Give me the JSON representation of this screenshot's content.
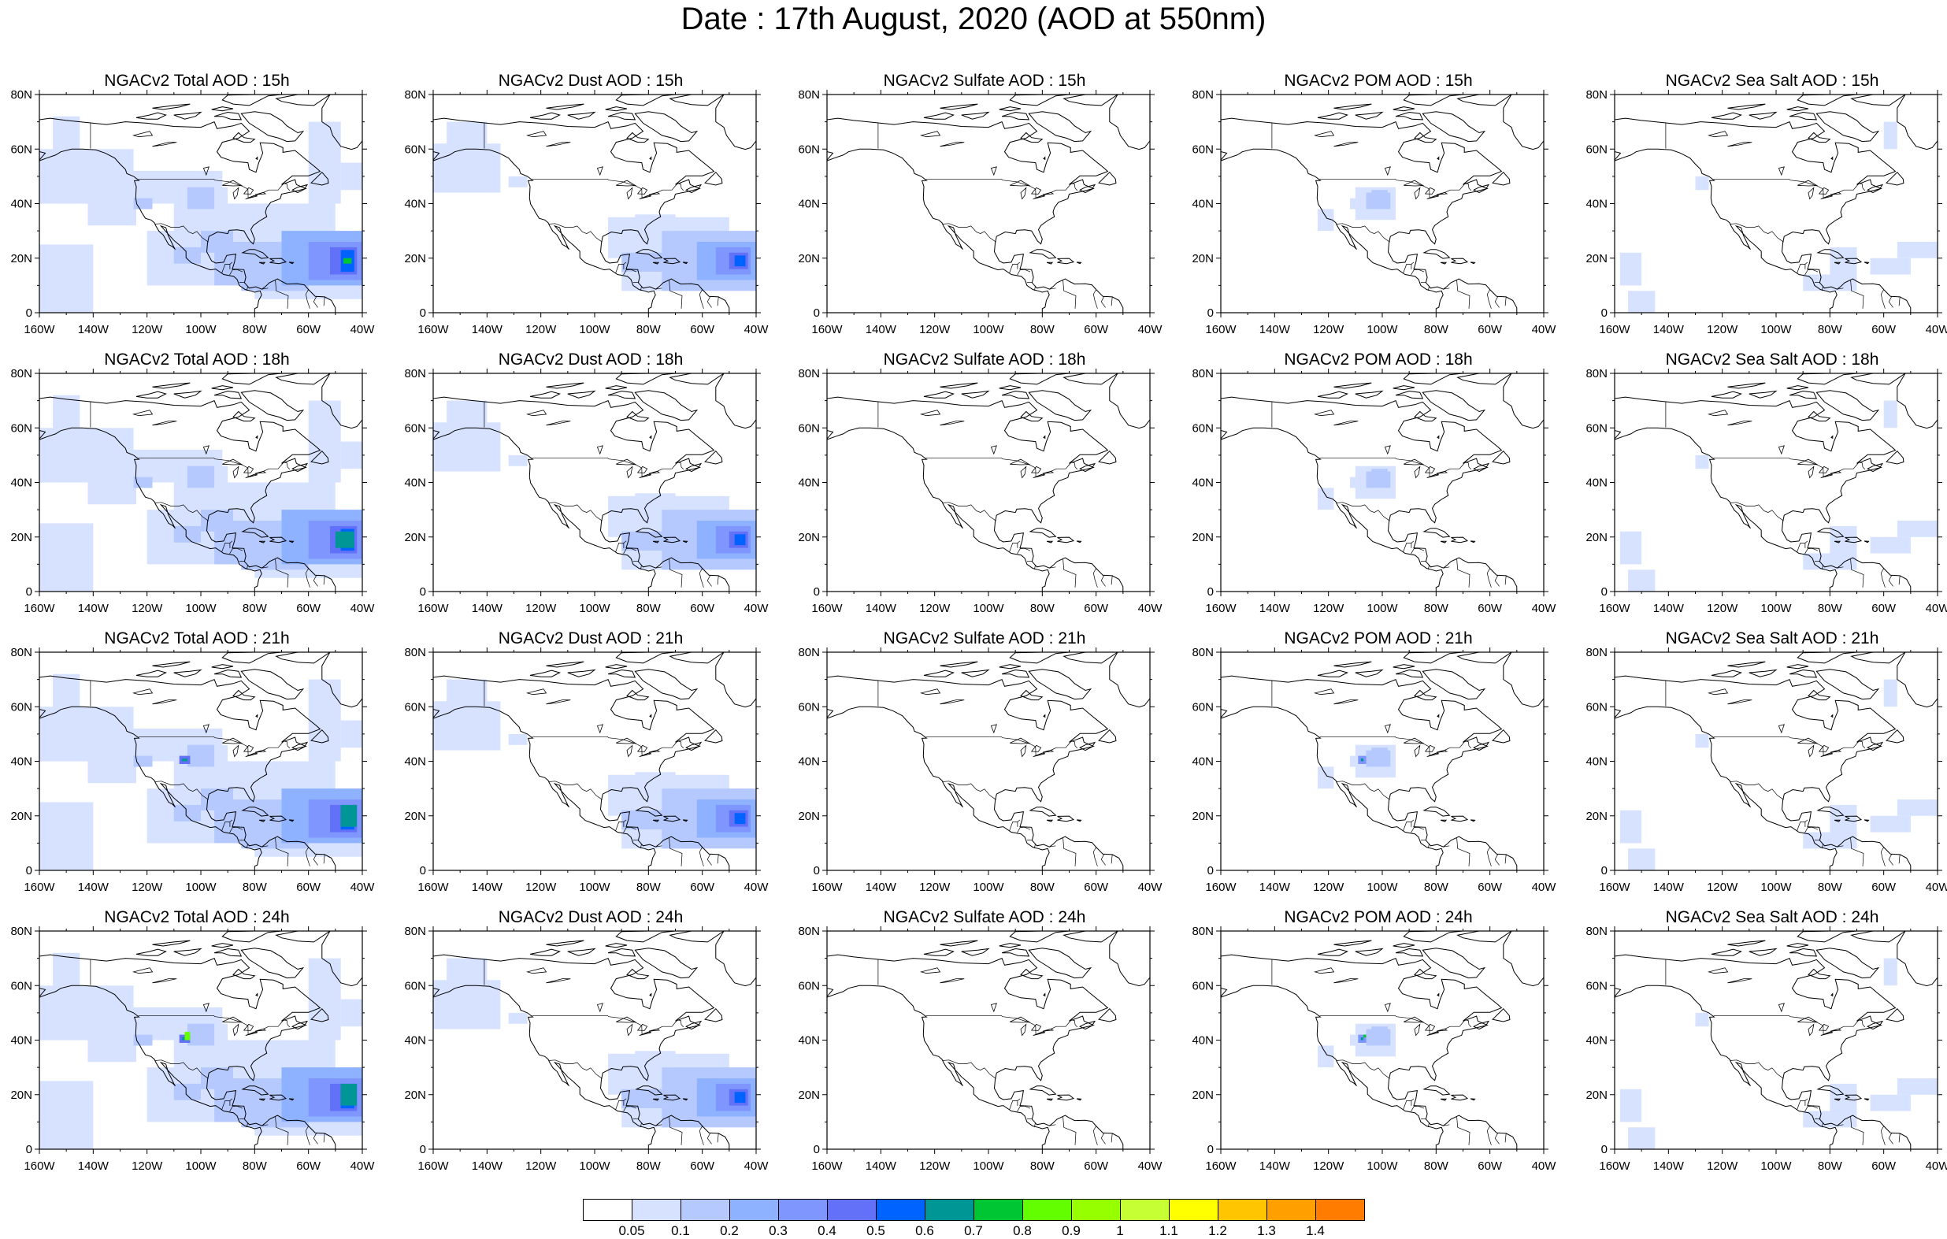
{
  "title": "Date : 17th August, 2020 (AOD at 550nm)",
  "lat_labels": [
    "0",
    "20N",
    "40N",
    "60N",
    "80N"
  ],
  "lon_labels": [
    "160W",
    "140W",
    "120W",
    "100W",
    "80W",
    "60W",
    "40W"
  ],
  "panels": [
    [
      {
        "title": "NGACv2 Total AOD : 15h",
        "field": "total"
      },
      {
        "title": "NGACv2 Dust AOD : 15h",
        "field": "dust"
      },
      {
        "title": "NGACv2 Sulfate AOD : 15h",
        "field": "sulfate"
      },
      {
        "title": "NGACv2 POM AOD : 15h",
        "field": "pom"
      },
      {
        "title": "NGACv2 Sea Salt AOD : 15h",
        "field": "seasalt"
      }
    ],
    [
      {
        "title": "NGACv2 Total AOD : 18h",
        "field": "total"
      },
      {
        "title": "NGACv2 Dust AOD : 18h",
        "field": "dust"
      },
      {
        "title": "NGACv2 Sulfate AOD : 18h",
        "field": "sulfate"
      },
      {
        "title": "NGACv2 POM AOD : 18h",
        "field": "pom"
      },
      {
        "title": "NGACv2 Sea Salt AOD : 18h",
        "field": "seasalt"
      }
    ],
    [
      {
        "title": "NGACv2 Total AOD : 21h",
        "field": "total"
      },
      {
        "title": "NGACv2 Dust AOD : 21h",
        "field": "dust"
      },
      {
        "title": "NGACv2 Sulfate AOD : 21h",
        "field": "sulfate"
      },
      {
        "title": "NGACv2 POM AOD : 21h",
        "field": "pom"
      },
      {
        "title": "NGACv2 Sea Salt AOD : 21h",
        "field": "seasalt"
      }
    ],
    [
      {
        "title": "NGACv2 Total AOD : 24h",
        "field": "total"
      },
      {
        "title": "NGACv2 Dust AOD : 24h",
        "field": "dust"
      },
      {
        "title": "NGACv2 Sulfate AOD : 24h",
        "field": "sulfate"
      },
      {
        "title": "NGACv2 POM AOD : 24h",
        "field": "pom"
      },
      {
        "title": "NGACv2 Sea Salt  AOD : 24h",
        "field": "seasalt"
      }
    ]
  ],
  "colorbar": {
    "labels": [
      "0.05",
      "0.1",
      "0.2",
      "0.3",
      "0.4",
      "0.5",
      "0.6",
      "0.7",
      "0.8",
      "0.9",
      "1",
      "1.1",
      "1.2",
      "1.3",
      "1.4"
    ],
    "colors": [
      "#ffffff",
      "#d6e2ff",
      "#b5c9ff",
      "#8eb2ff",
      "#7f96ff",
      "#6370f8",
      "#0063ff",
      "#009696",
      "#00c633",
      "#63ff00",
      "#96ff00",
      "#c6ff33",
      "#ffff00",
      "#ffc600",
      "#ffa000",
      "#ff7c00",
      "#ff1900"
    ]
  }
}
